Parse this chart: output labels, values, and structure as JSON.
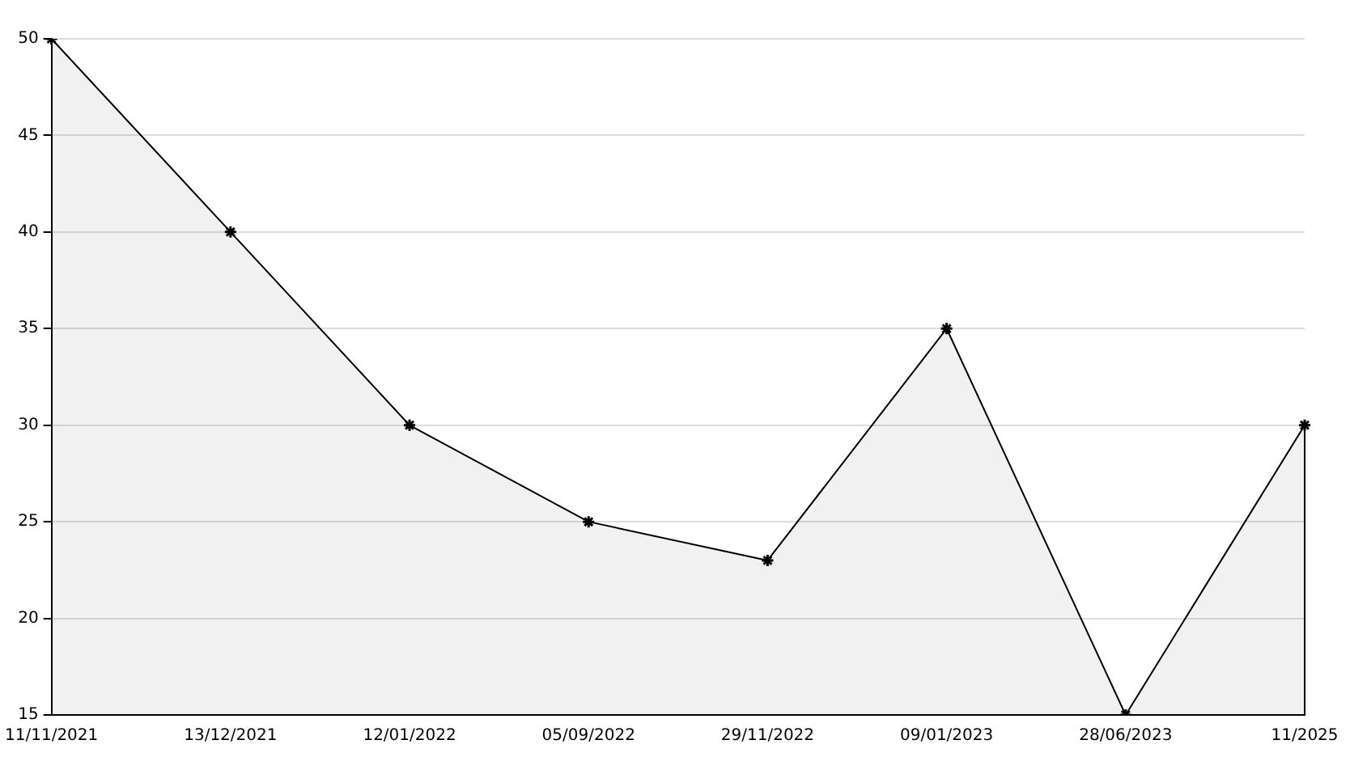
{
  "chart_data": {
    "type": "area",
    "categories": [
      "11/11/2021",
      "13/12/2021",
      "12/01/2022",
      "05/09/2022",
      "29/11/2022",
      "09/01/2023",
      "28/06/2023",
      "11/2025"
    ],
    "series": [
      {
        "color": "#000000",
        "values": [
          50,
          40,
          30,
          25,
          23,
          35,
          15,
          30
        ]
      }
    ],
    "ylim": [
      15,
      50
    ],
    "yticks": [
      15,
      20,
      25,
      30,
      35,
      40,
      45,
      50
    ],
    "grid": "y",
    "legend": false,
    "marker": "cross",
    "line_style": "solid"
  }
}
